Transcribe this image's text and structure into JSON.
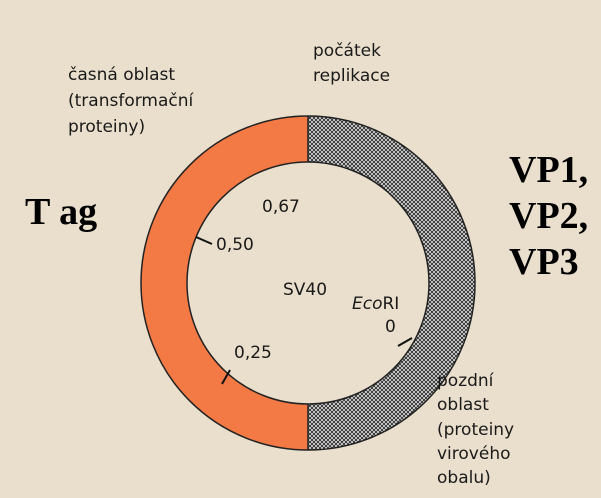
{
  "title": "SV40",
  "early_region": [
    "časná oblast",
    "(transformační",
    "proteiny)"
  ],
  "origin": [
    "počátek",
    "replikace"
  ],
  "late_region": [
    "pozdní",
    "oblast",
    "(proteiny",
    "virového",
    "obalu)"
  ],
  "early_proteins": "T ag",
  "late_proteins": [
    "VP1,",
    "VP2,",
    "VP3"
  ],
  "map_units": [
    "0,67",
    "0,50",
    "0,25",
    "0"
  ],
  "ecori": {
    "italic": "Eco",
    "roman": "RI"
  }
}
